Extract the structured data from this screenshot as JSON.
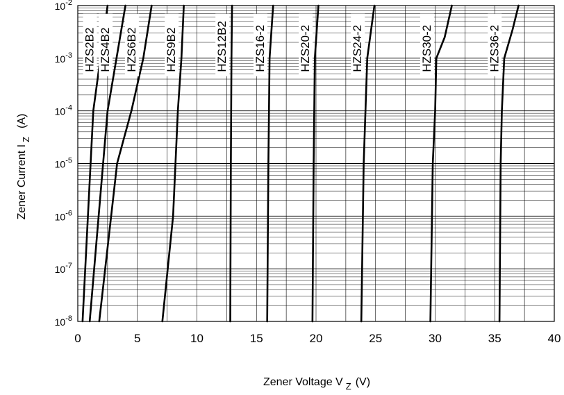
{
  "chart_data": {
    "type": "line",
    "xlabel": "Zener Voltage V",
    "xlabel_sub": "Z",
    "xlabel_unit": "(V)",
    "ylabel": "Zener Current I",
    "ylabel_sub": "Z",
    "ylabel_unit": "(A)",
    "xlim": [
      0,
      40
    ],
    "ylim": [
      1e-08,
      0.01
    ],
    "yscale": "log",
    "grid": true,
    "x_ticks": [
      0,
      5,
      10,
      15,
      20,
      25,
      30,
      35,
      40
    ],
    "x_tick_labels": [
      "0",
      "5",
      "10",
      "15",
      "20",
      "25",
      "30",
      "35",
      "40"
    ],
    "y_tick_labels": [
      {
        "base": "10",
        "exp": "-8"
      },
      {
        "base": "10",
        "exp": "-7"
      },
      {
        "base": "10",
        "exp": "-6"
      },
      {
        "base": "10",
        "exp": "-5"
      },
      {
        "base": "10",
        "exp": "-4"
      },
      {
        "base": "10",
        "exp": "-3"
      },
      {
        "base": "10",
        "exp": "-2"
      }
    ],
    "series": [
      {
        "name": "HZS2B2",
        "points": [
          [
            0.4,
            1e-08
          ],
          [
            1.3,
            0.0001
          ],
          [
            2.5,
            0.01
          ]
        ]
      },
      {
        "name": "HZS4B2",
        "points": [
          [
            1.0,
            1e-08
          ],
          [
            2.5,
            0.0001
          ],
          [
            4.0,
            0.01
          ]
        ]
      },
      {
        "name": "HZS6B2",
        "points": [
          [
            1.8,
            1e-08
          ],
          [
            3.3,
            1e-05
          ],
          [
            4.5,
            0.0001
          ],
          [
            5.5,
            0.001
          ],
          [
            6.2,
            0.01
          ]
        ]
      },
      {
        "name": "HZS9B2",
        "points": [
          [
            7.1,
            1e-08
          ],
          [
            8.0,
            1e-06
          ],
          [
            8.4,
            0.0001
          ],
          [
            8.7,
            0.001
          ],
          [
            8.9,
            0.01
          ]
        ]
      },
      {
        "name": "HZS12B2",
        "points": [
          [
            12.8,
            1e-08
          ],
          [
            12.85,
            1e-05
          ],
          [
            12.9,
            0.001
          ],
          [
            12.95,
            0.01
          ]
        ]
      },
      {
        "name": "HZS16-2",
        "points": [
          [
            15.9,
            1e-08
          ],
          [
            16.0,
            1e-05
          ],
          [
            16.1,
            0.001
          ],
          [
            16.4,
            0.01
          ]
        ]
      },
      {
        "name": "HZS20-2",
        "points": [
          [
            19.7,
            1e-08
          ],
          [
            19.8,
            1e-05
          ],
          [
            19.9,
            0.001
          ],
          [
            20.2,
            0.01
          ]
        ]
      },
      {
        "name": "HZS24-2",
        "points": [
          [
            23.8,
            1e-08
          ],
          [
            24.0,
            1e-05
          ],
          [
            24.3,
            0.001
          ],
          [
            24.9,
            0.01
          ]
        ]
      },
      {
        "name": "HZS30-2",
        "points": [
          [
            29.6,
            1e-08
          ],
          [
            29.8,
            1e-05
          ],
          [
            30.0,
            0.0001
          ],
          [
            30.1,
            0.001
          ],
          [
            30.8,
            0.0025
          ],
          [
            31.4,
            0.01
          ]
        ]
      },
      {
        "name": "HZS36-2",
        "points": [
          [
            35.4,
            1e-08
          ],
          [
            35.5,
            1e-05
          ],
          [
            35.6,
            0.0001
          ],
          [
            35.8,
            0.001
          ],
          [
            36.5,
            0.0035
          ],
          [
            37.0,
            0.01
          ]
        ]
      }
    ]
  }
}
